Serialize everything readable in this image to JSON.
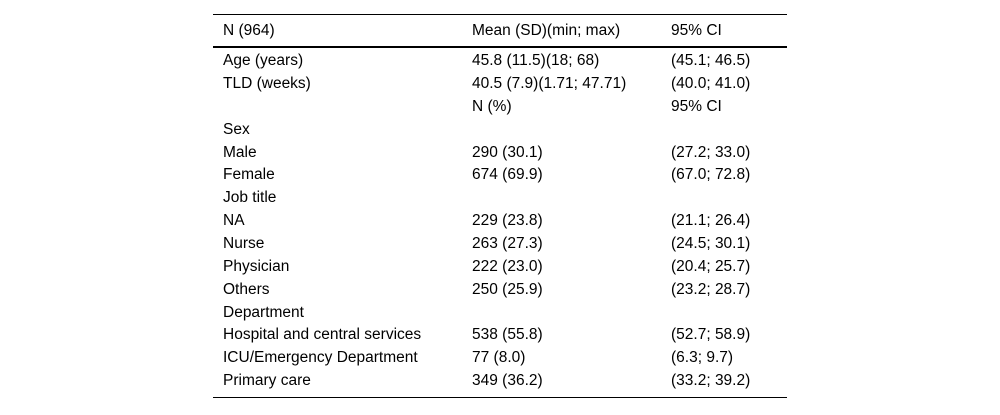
{
  "table": {
    "header": {
      "col1": "N (964)",
      "col2": "Mean (SD)(min; max)",
      "col3": "95% CI"
    },
    "rows": [
      {
        "label": "Age (years)",
        "value": "45.8 (11.5)(18; 68)",
        "ci": "(45.1; 46.5)"
      },
      {
        "label": "TLD (weeks)",
        "value": "40.5 (7.9)(1.71; 47.71)",
        "ci": "(40.0; 41.0)"
      },
      {
        "label": "",
        "value": "N (%)",
        "ci": "95% CI"
      },
      {
        "label": "Sex",
        "value": "",
        "ci": ""
      },
      {
        "label": "Male",
        "value": "290 (30.1)",
        "ci": "(27.2; 33.0)"
      },
      {
        "label": "Female",
        "value": "674 (69.9)",
        "ci": "(67.0; 72.8)"
      },
      {
        "label": "Job title",
        "value": "",
        "ci": ""
      },
      {
        "label": "NA",
        "value": "229 (23.8)",
        "ci": "(21.1; 26.4)"
      },
      {
        "label": "Nurse",
        "value": "263 (27.3)",
        "ci": "(24.5; 30.1)"
      },
      {
        "label": "Physician",
        "value": "222 (23.0)",
        "ci": "(20.4; 25.7)"
      },
      {
        "label": "Others",
        "value": "250 (25.9)",
        "ci": "(23.2; 28.7)"
      },
      {
        "label": "Department",
        "value": "",
        "ci": ""
      },
      {
        "label": "Hospital and central services",
        "value": "538 (55.8)",
        "ci": "(52.7; 58.9)"
      },
      {
        "label": "ICU/Emergency Department",
        "value": "77 (8.0)",
        "ci": "(6.3; 9.7)"
      },
      {
        "label": "Primary care",
        "value": "349 (36.2)",
        "ci": "(33.2; 39.2)"
      }
    ]
  }
}
